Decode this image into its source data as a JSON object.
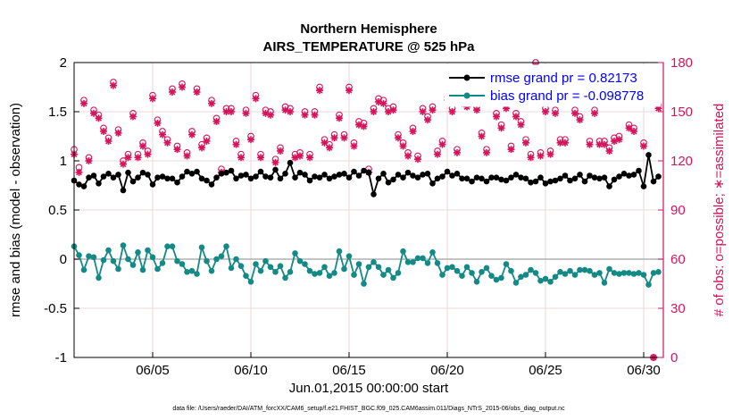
{
  "chart_data": {
    "type": "line",
    "title": "Northern Hemisphere",
    "subtitle": "AIRS_TEMPERATURE @ 525 hPa",
    "xlabel": "Jun.01,2015 00:00:00 start",
    "ylabel": "rmse and bias (model - observation)",
    "ylabel_right": "# of obs: o=possible; ∗=assimilated",
    "xlim": [
      1.0,
      31.0
    ],
    "ylim": [
      -1,
      2
    ],
    "ylim_right": [
      0,
      180
    ],
    "x_ticks": [
      5,
      10,
      15,
      20,
      25,
      30
    ],
    "x_tick_labels": [
      "06/05",
      "06/10",
      "06/15",
      "06/20",
      "06/25",
      "06/30"
    ],
    "y_ticks": [
      -1,
      -0.5,
      0,
      0.5,
      1,
      1.5,
      2
    ],
    "y_tick_labels": [
      "-1",
      "-0.5",
      "0",
      "0.5",
      "1",
      "1.5",
      "2"
    ],
    "y_ticks_right": [
      0,
      30,
      60,
      90,
      120,
      150,
      180
    ],
    "y_tick_labels_right": [
      "0",
      "30",
      "60",
      "90",
      "120",
      "150",
      "180"
    ],
    "grid": true,
    "legend_position": "top-right",
    "footnote": "data file: /Users/raeder/DAI/ATM_forcXX/CAM6_setup/f.e21.FHIST_BGC.f09_025.CAM6assim.011/Diags_NTrS_2015-06/obs_diag_output.nc",
    "colors": {
      "rmse": "#000000",
      "bias": "#138a86",
      "obs": "#d6135b",
      "zero_line": "#b0b0b0",
      "grid": "#e6cdd3"
    },
    "series": [
      {
        "name": "rmse grand pr = 0.82173",
        "axis": "left",
        "x": [
          1.0,
          1.25,
          1.5,
          1.75,
          2.0,
          2.25,
          2.5,
          2.75,
          3.0,
          3.25,
          3.5,
          3.75,
          4.0,
          4.25,
          4.5,
          4.75,
          5.0,
          5.25,
          5.5,
          5.75,
          6.0,
          6.25,
          6.5,
          6.75,
          7.0,
          7.25,
          7.5,
          7.75,
          8.0,
          8.25,
          8.5,
          8.75,
          9.0,
          9.25,
          9.5,
          9.75,
          10.0,
          10.25,
          10.5,
          10.75,
          11.0,
          11.25,
          11.5,
          11.75,
          12.0,
          12.25,
          12.5,
          12.75,
          13.0,
          13.25,
          13.5,
          13.75,
          14.0,
          14.25,
          14.5,
          14.75,
          15.0,
          15.25,
          15.5,
          15.75,
          16.0,
          16.25,
          16.5,
          16.75,
          17.0,
          17.25,
          17.5,
          17.75,
          18.0,
          18.25,
          18.5,
          18.75,
          19.0,
          19.25,
          19.5,
          19.75,
          20.0,
          20.25,
          20.5,
          20.75,
          21.0,
          21.25,
          21.5,
          21.75,
          22.0,
          22.25,
          22.5,
          22.75,
          23.0,
          23.25,
          23.5,
          23.75,
          24.0,
          24.25,
          24.5,
          24.75,
          25.0,
          25.25,
          25.5,
          25.75,
          26.0,
          26.25,
          26.5,
          26.75,
          27.0,
          27.25,
          27.5,
          27.75,
          28.0,
          28.25,
          28.5,
          28.75,
          29.0,
          29.25,
          29.5,
          29.75,
          30.0,
          30.25,
          30.5,
          30.75
        ],
        "values": [
          0.8,
          0.76,
          0.74,
          0.83,
          0.85,
          0.77,
          0.84,
          0.87,
          0.83,
          0.86,
          0.7,
          0.88,
          0.79,
          0.83,
          0.88,
          0.86,
          0.76,
          0.83,
          0.84,
          0.82,
          0.82,
          0.78,
          0.84,
          0.89,
          0.87,
          0.89,
          0.82,
          0.8,
          0.76,
          0.83,
          0.87,
          0.88,
          0.9,
          0.82,
          0.85,
          0.86,
          0.82,
          0.84,
          0.89,
          0.84,
          0.83,
          0.91,
          0.82,
          0.87,
          0.98,
          0.83,
          0.88,
          0.86,
          0.8,
          0.84,
          0.83,
          0.86,
          0.82,
          0.84,
          0.86,
          0.87,
          0.83,
          0.89,
          0.85,
          0.9,
          0.88,
          0.66,
          0.82,
          0.87,
          0.78,
          0.81,
          0.86,
          0.83,
          0.88,
          0.85,
          0.83,
          0.86,
          0.87,
          0.77,
          0.82,
          0.84,
          0.89,
          0.85,
          0.87,
          0.82,
          0.82,
          0.79,
          0.83,
          0.82,
          0.79,
          0.83,
          0.83,
          0.81,
          0.8,
          0.83,
          0.86,
          0.83,
          0.82,
          0.78,
          0.79,
          0.83,
          0.77,
          0.79,
          0.8,
          0.82,
          0.85,
          0.8,
          0.82,
          0.86,
          0.79,
          0.85,
          0.83,
          0.82,
          0.83,
          0.74,
          0.81,
          0.84,
          0.87,
          0.85,
          0.86,
          0.9,
          0.74,
          1.06,
          0.79,
          0.84
        ]
      },
      {
        "name": "bias grand pr = -0.098778",
        "axis": "left",
        "x": [
          1.0,
          1.25,
          1.5,
          1.75,
          2.0,
          2.25,
          2.5,
          2.75,
          3.0,
          3.25,
          3.5,
          3.75,
          4.0,
          4.25,
          4.5,
          4.75,
          5.0,
          5.25,
          5.5,
          5.75,
          6.0,
          6.25,
          6.5,
          6.75,
          7.0,
          7.25,
          7.5,
          7.75,
          8.0,
          8.25,
          8.5,
          8.75,
          9.0,
          9.25,
          9.5,
          9.75,
          10.0,
          10.25,
          10.5,
          10.75,
          11.0,
          11.25,
          11.5,
          11.75,
          12.0,
          12.25,
          12.5,
          12.75,
          13.0,
          13.25,
          13.5,
          13.75,
          14.0,
          14.25,
          14.5,
          14.75,
          15.0,
          15.25,
          15.5,
          15.75,
          16.0,
          16.25,
          16.5,
          16.75,
          17.0,
          17.25,
          17.5,
          17.75,
          18.0,
          18.25,
          18.5,
          18.75,
          19.0,
          19.25,
          19.5,
          19.75,
          20.0,
          20.25,
          20.5,
          20.75,
          21.0,
          21.25,
          21.5,
          21.75,
          22.0,
          22.25,
          22.5,
          22.75,
          23.0,
          23.25,
          23.5,
          23.75,
          24.0,
          24.25,
          24.5,
          24.75,
          25.0,
          25.25,
          25.5,
          25.75,
          26.0,
          26.25,
          26.5,
          26.75,
          27.0,
          27.25,
          27.5,
          27.75,
          28.0,
          28.25,
          28.5,
          28.75,
          29.0,
          29.25,
          29.5,
          29.75,
          30.0,
          30.25,
          30.5,
          30.75
        ],
        "values": [
          0.13,
          0.04,
          -0.11,
          0.03,
          0.02,
          -0.19,
          -0.01,
          0.09,
          -0.02,
          -0.1,
          0.14,
          0.0,
          -0.06,
          0.07,
          -0.11,
          0.09,
          0.02,
          -0.1,
          -0.04,
          0.13,
          0.13,
          -0.02,
          -0.05,
          -0.13,
          -0.12,
          -0.15,
          0.12,
          -0.02,
          -0.12,
          0.0,
          0.03,
          0.13,
          -0.09,
          0.0,
          -0.07,
          -0.17,
          -0.23,
          -0.05,
          -0.12,
          -0.02,
          -0.08,
          -0.13,
          -0.07,
          -0.19,
          -0.13,
          0.06,
          -0.02,
          -0.05,
          -0.12,
          -0.15,
          -0.14,
          -0.08,
          -0.17,
          -0.14,
          0.08,
          -0.1,
          0.03,
          -0.16,
          -0.05,
          -0.25,
          -0.08,
          -0.03,
          -0.08,
          -0.16,
          -0.11,
          -0.19,
          -0.14,
          0.08,
          -0.03,
          -0.03,
          0.01,
          0.01,
          -0.04,
          0.07,
          -0.04,
          -0.16,
          -0.09,
          -0.08,
          -0.12,
          -0.17,
          -0.08,
          -0.14,
          -0.23,
          -0.13,
          -0.09,
          -0.17,
          -0.21,
          -0.19,
          -0.05,
          -0.12,
          -0.24,
          -0.18,
          -0.16,
          -0.11,
          -0.14,
          -0.22,
          -0.2,
          -0.23,
          -0.18,
          -0.13,
          -0.15,
          -0.12,
          -0.16,
          -0.11,
          -0.11,
          -0.12,
          -0.16,
          -0.14,
          -0.24,
          -0.1,
          -0.14,
          -0.15,
          -0.14,
          -0.14,
          -0.15,
          -0.14,
          -0.16,
          -0.26,
          -0.14,
          -0.13
        ]
      },
      {
        "name": "possible",
        "axis": "right",
        "marker": "o",
        "x": [
          1.0,
          1.25,
          1.5,
          1.75,
          2.0,
          2.25,
          2.5,
          2.75,
          3.0,
          3.25,
          3.5,
          3.75,
          4.0,
          4.25,
          4.5,
          4.75,
          5.0,
          5.25,
          5.5,
          5.75,
          6.0,
          6.25,
          6.5,
          6.75,
          7.0,
          7.25,
          7.5,
          7.75,
          8.0,
          8.25,
          8.5,
          8.75,
          9.0,
          9.25,
          9.5,
          9.75,
          10.0,
          10.25,
          10.5,
          10.75,
          11.0,
          11.25,
          11.5,
          11.75,
          12.0,
          12.25,
          12.5,
          12.75,
          13.0,
          13.25,
          13.5,
          13.75,
          14.0,
          14.25,
          14.5,
          14.75,
          15.0,
          15.25,
          15.5,
          15.75,
          16.0,
          16.25,
          16.5,
          16.75,
          17.0,
          17.25,
          17.5,
          17.75,
          18.0,
          18.25,
          18.5,
          18.75,
          19.0,
          19.25,
          19.5,
          19.75,
          20.0,
          20.25,
          20.5,
          20.75,
          21.0,
          21.25,
          21.5,
          21.75,
          22.0,
          22.25,
          22.5,
          22.75,
          23.0,
          23.25,
          23.5,
          23.75,
          24.0,
          24.25,
          24.5,
          24.75,
          25.0,
          25.25,
          25.5,
          25.75,
          26.0,
          26.25,
          26.5,
          26.75,
          27.0,
          27.25,
          27.5,
          27.75,
          28.0,
          28.25,
          28.5,
          28.75,
          29.0,
          29.25,
          29.5,
          29.75,
          30.0,
          30.25,
          30.5,
          30.75
        ],
        "values": [
          127,
          116,
          157,
          122,
          151,
          148,
          140,
          134,
          168,
          139,
          120,
          124,
          149,
          124,
          131,
          126,
          160,
          145,
          138,
          133,
          164,
          129,
          167,
          125,
          138,
          164,
          130,
          134,
          157,
          146,
          115,
          152,
          152,
          132,
          124,
          151,
          135,
          160,
          124,
          151,
          150,
          121,
          128,
          153,
          152,
          124,
          125,
          150,
          124,
          150,
          165,
          133,
          130,
          136,
          148,
          136,
          165,
          131,
          144,
          143,
          115,
          152,
          158,
          157,
          152,
          153,
          136,
          131,
          125,
          140,
          123,
          152,
          147,
          153,
          126,
          132,
          159,
          152,
          127,
          157,
          155,
          163,
          153,
          137,
          127,
          165,
          149,
          142,
          154,
          129,
          149,
          144,
          133,
          124,
          180,
          125,
          152,
          126,
          151,
          133,
          133,
          162,
          151,
          147,
          158,
          132,
          151,
          132,
          132,
          128,
          134,
          135,
          163,
          142,
          140,
          161,
          131,
          168,
          0,
          154
        ]
      },
      {
        "name": "assimilated",
        "axis": "right",
        "marker": "*",
        "x": [
          1.0,
          1.25,
          1.5,
          1.75,
          2.0,
          2.25,
          2.5,
          2.75,
          3.0,
          3.25,
          3.5,
          3.75,
          4.0,
          4.25,
          4.5,
          4.75,
          5.0,
          5.25,
          5.5,
          5.75,
          6.0,
          6.25,
          6.5,
          6.75,
          7.0,
          7.25,
          7.5,
          7.75,
          8.0,
          8.25,
          8.5,
          8.75,
          9.0,
          9.25,
          9.5,
          9.75,
          10.0,
          10.25,
          10.5,
          10.75,
          11.0,
          11.25,
          11.5,
          11.75,
          12.0,
          12.25,
          12.5,
          12.75,
          13.0,
          13.25,
          13.5,
          13.75,
          14.0,
          14.25,
          14.5,
          14.75,
          15.0,
          15.25,
          15.5,
          15.75,
          16.0,
          16.25,
          16.5,
          16.75,
          17.0,
          17.25,
          17.5,
          17.75,
          18.0,
          18.25,
          18.5,
          18.75,
          19.0,
          19.25,
          19.5,
          19.75,
          20.0,
          20.25,
          20.5,
          20.75,
          21.0,
          21.25,
          21.5,
          21.75,
          22.0,
          22.25,
          22.5,
          22.75,
          23.0,
          23.25,
          23.5,
          23.75,
          24.0,
          24.25,
          24.5,
          24.75,
          25.0,
          25.25,
          25.5,
          25.75,
          26.0,
          26.25,
          26.5,
          26.75,
          27.0,
          27.25,
          27.5,
          27.75,
          28.0,
          28.25,
          28.5,
          28.75,
          29.0,
          29.25,
          29.5,
          29.75,
          30.0,
          30.25,
          30.5,
          30.75
        ],
        "values": [
          124,
          113,
          155,
          120,
          149,
          146,
          138,
          132,
          166,
          137,
          118,
          122,
          147,
          122,
          129,
          124,
          158,
          143,
          136,
          131,
          162,
          127,
          165,
          123,
          136,
          162,
          128,
          132,
          155,
          144,
          113,
          150,
          150,
          130,
          122,
          149,
          133,
          158,
          122,
          149,
          148,
          119,
          126,
          151,
          150,
          122,
          123,
          148,
          122,
          148,
          163,
          131,
          128,
          134,
          146,
          134,
          163,
          129,
          142,
          141,
          113,
          150,
          156,
          155,
          150,
          151,
          134,
          129,
          123,
          138,
          121,
          150,
          145,
          151,
          124,
          130,
          157,
          150,
          125,
          155,
          153,
          161,
          151,
          135,
          125,
          163,
          147,
          140,
          152,
          127,
          147,
          142,
          131,
          122,
          178,
          123,
          150,
          124,
          149,
          131,
          131,
          160,
          149,
          145,
          156,
          130,
          149,
          130,
          130,
          126,
          132,
          133,
          161,
          140,
          138,
          159,
          129,
          166,
          0,
          152
        ]
      }
    ],
    "legend": [
      {
        "label": "rmse grand pr = 0.82173",
        "color": "#000000"
      },
      {
        "label": "bias grand pr = -0.098778",
        "color": "#138a86"
      }
    ]
  }
}
